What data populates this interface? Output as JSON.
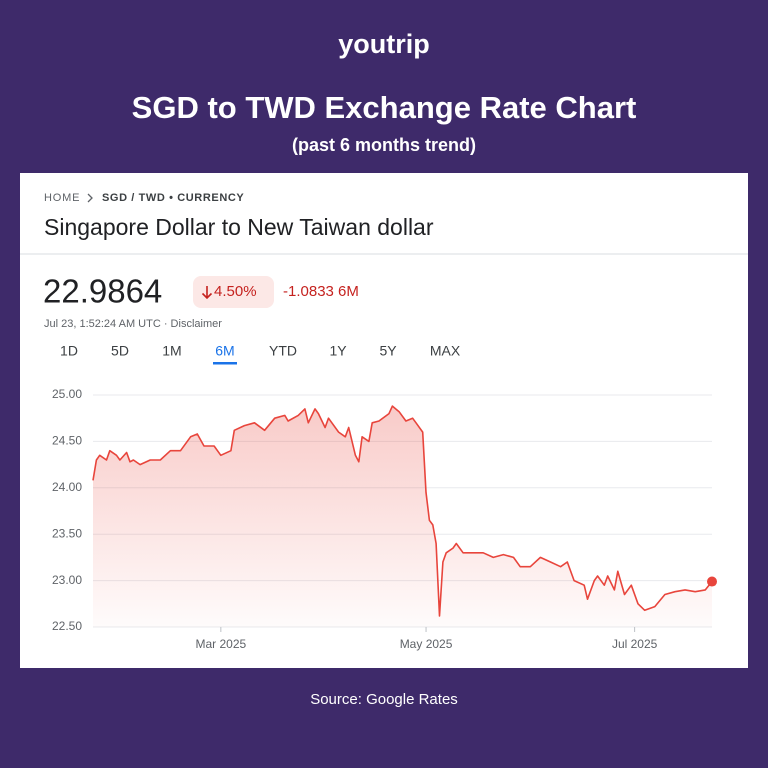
{
  "brand": "youtrip",
  "title": "SGD to TWD Exchange Rate Chart",
  "subtitle": "(past 6 months trend)",
  "source": "Source: Google Rates",
  "breadcrumb": [
    "HOME",
    "SGD / TWD • CURRENCY"
  ],
  "heading": "Singapore Dollar to New Taiwan dollar",
  "price": "22.9864",
  "change_pct": "4.50%",
  "change_abs": "-1.0833 6M",
  "timestamp": "Jul 23, 1:52:24 AM UTC · Disclaimer",
  "ranges": [
    "1D",
    "5D",
    "1M",
    "6M",
    "YTD",
    "1Y",
    "5Y",
    "MAX"
  ],
  "selected_range": 3,
  "chart_data": {
    "type": "line",
    "color": "#e8453c",
    "x": [
      0,
      1,
      2,
      4,
      5,
      7,
      8,
      10,
      11,
      12,
      14,
      17,
      20,
      23,
      26,
      29,
      31,
      33,
      36,
      38,
      41,
      42,
      45,
      48,
      51,
      54,
      57,
      58,
      61,
      63,
      64,
      66,
      67,
      69,
      70,
      73,
      75,
      76,
      78,
      79,
      80,
      82,
      83,
      85,
      88,
      89,
      91,
      93,
      95,
      96,
      98,
      99,
      100,
      101,
      102,
      103,
      104,
      105,
      107,
      108,
      110,
      113,
      116,
      119,
      122,
      125,
      127,
      130,
      133,
      136,
      139,
      141,
      143,
      146,
      147,
      149,
      150,
      152,
      153,
      155,
      156,
      158,
      160,
      162,
      164,
      167,
      170,
      173,
      176,
      179,
      182,
      184
    ],
    "values": [
      24.08,
      24.3,
      24.35,
      24.3,
      24.4,
      24.35,
      24.3,
      24.38,
      24.28,
      24.3,
      24.25,
      24.3,
      24.3,
      24.4,
      24.4,
      24.55,
      24.58,
      24.45,
      24.45,
      24.35,
      24.4,
      24.62,
      24.67,
      24.7,
      24.62,
      24.75,
      24.78,
      24.72,
      24.78,
      24.85,
      24.7,
      24.85,
      24.8,
      24.65,
      24.75,
      24.6,
      24.55,
      24.65,
      24.35,
      24.28,
      24.55,
      24.5,
      24.7,
      24.72,
      24.8,
      24.88,
      24.82,
      24.72,
      24.75,
      24.7,
      24.6,
      23.95,
      23.65,
      23.6,
      23.4,
      22.62,
      23.2,
      23.3,
      23.35,
      23.4,
      23.3,
      23.3,
      23.3,
      23.25,
      23.28,
      23.25,
      23.15,
      23.15,
      23.25,
      23.2,
      23.15,
      23.2,
      23.0,
      22.95,
      22.8,
      23.0,
      23.05,
      22.95,
      23.05,
      22.9,
      23.1,
      22.85,
      22.95,
      22.75,
      22.68,
      22.72,
      22.85,
      22.88,
      22.9,
      22.88,
      22.9,
      22.99
    ],
    "xlim": [
      0,
      184
    ],
    "xticks": [
      {
        "value": 38,
        "label": "Mar 2025"
      },
      {
        "value": 99,
        "label": "May 2025"
      },
      {
        "value": 161,
        "label": "Jul 2025"
      }
    ],
    "ylim": [
      22.5,
      25.0
    ],
    "yticks": [
      {
        "value": 22.5,
        "label": "22.50"
      },
      {
        "value": 23.0,
        "label": "23.00"
      },
      {
        "value": 23.5,
        "label": "23.50"
      },
      {
        "value": 24.0,
        "label": "24.00"
      },
      {
        "value": 24.5,
        "label": "24.50"
      },
      {
        "value": 25.0,
        "label": "25.00"
      }
    ],
    "grid": true
  }
}
